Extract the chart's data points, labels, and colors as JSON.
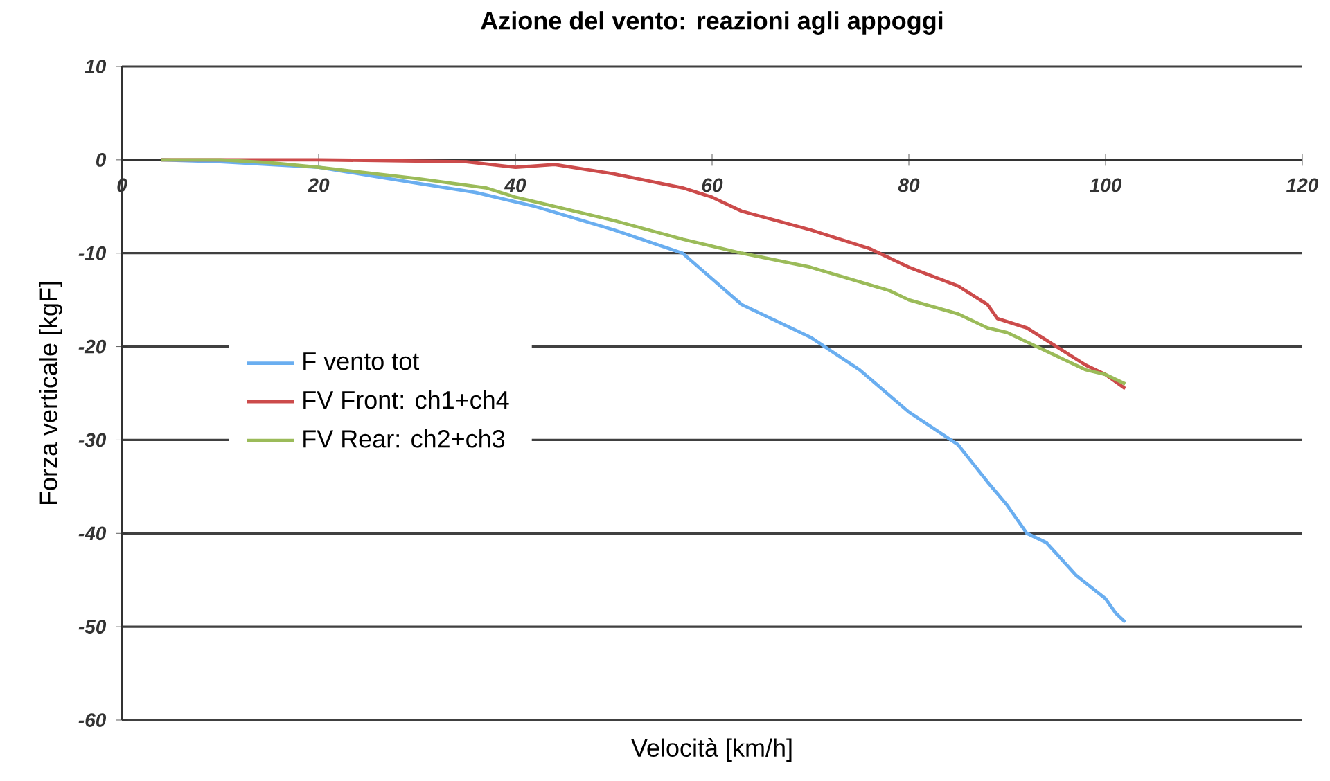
{
  "chart_data": {
    "type": "line",
    "title": "Azione del vento: reazioni agli appoggi",
    "xlabel": "Velocità [km/h]",
    "ylabel": "Forza verticale [kgF]",
    "xlim": [
      0,
      120
    ],
    "ylim": [
      -60,
      10
    ],
    "xticks": [
      0,
      20,
      40,
      60,
      80,
      100,
      120
    ],
    "yticks": [
      -60,
      -50,
      -40,
      -30,
      -20,
      -10,
      0,
      10
    ],
    "grid": "y",
    "legend": "left",
    "series": [
      {
        "name": "F vento tot",
        "color": "#6aaef0",
        "x": [
          4,
          10,
          20,
          30,
          36,
          38,
          42,
          50,
          57,
          63,
          70,
          75,
          80,
          85,
          88,
          90,
          92,
          94,
          97,
          100,
          101,
          102
        ],
        "values": [
          0,
          -0.2,
          -0.8,
          -2.5,
          -3.5,
          -4,
          -5,
          -7.5,
          -10,
          -15.5,
          -19,
          -22.5,
          -27,
          -30.5,
          -34.5,
          -37,
          -40,
          -41,
          -44.5,
          -47,
          -48.5,
          -49.5
        ]
      },
      {
        "name": "FV Front: ch1+ch4",
        "color": "#cc4b4b",
        "x": [
          4,
          10,
          20,
          35,
          40,
          44,
          50,
          57,
          60,
          63,
          70,
          76,
          80,
          85,
          88,
          89,
          92,
          95,
          98,
          100,
          102
        ],
        "values": [
          0,
          0,
          0,
          -0.2,
          -0.8,
          -0.5,
          -1.5,
          -3,
          -4,
          -5.5,
          -7.5,
          -9.5,
          -11.5,
          -13.5,
          -15.5,
          -17,
          -18,
          -20,
          -22,
          -23,
          -24.5
        ]
      },
      {
        "name": "FV Rear: ch2+ch3",
        "color": "#9bbb59",
        "x": [
          4,
          10,
          15,
          20,
          30,
          37,
          40,
          50,
          57,
          63,
          70,
          78,
          80,
          85,
          88,
          90,
          92,
          95,
          98,
          100,
          102
        ],
        "values": [
          0,
          0,
          -0.3,
          -0.8,
          -2,
          -3,
          -4,
          -6.5,
          -8.5,
          -10,
          -11.5,
          -14,
          -15,
          -16.5,
          -18,
          -18.5,
          -19.5,
          -21,
          -22.5,
          -23,
          -24
        ]
      }
    ]
  }
}
